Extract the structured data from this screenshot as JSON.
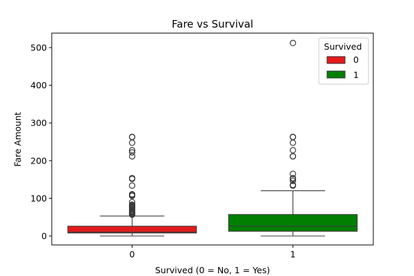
{
  "chart_data": {
    "type": "boxplot",
    "title": "Fare vs Survival",
    "xlabel": "Survived (0 = No, 1 = Yes)",
    "ylabel": "Fare Amount",
    "categories": [
      "0",
      "1"
    ],
    "ylim": [
      -25,
      538
    ],
    "yticks": [
      0,
      100,
      200,
      300,
      400,
      500
    ],
    "grid": false,
    "legend": {
      "title": "Survived",
      "placement": "top-right",
      "entries": [
        {
          "label": "0",
          "color": "#e31a1c"
        },
        {
          "label": "1",
          "color": "#007f00"
        }
      ]
    },
    "boxes": [
      {
        "category": "0",
        "color": "#e31a1c",
        "whisker_low": 0,
        "q1": 7.9,
        "median": 10.5,
        "q3": 26,
        "whisker_high": 53,
        "outliers": [
          56.5,
          57,
          59.4,
          61.2,
          61.4,
          63.4,
          65,
          66.6,
          69.5,
          71,
          73.5,
          75.2,
          76.3,
          77.3,
          79.2,
          80,
          82.2,
          83.2,
          90,
          106.4,
          108.9,
          110.9,
          133.7,
          151.6,
          153.5,
          211.5,
          221.8,
          227.5,
          247.5,
          262.4,
          263
        ]
      },
      {
        "category": "1",
        "color": "#007f00",
        "whisker_low": 0,
        "q1": 12.5,
        "median": 26,
        "q3": 57,
        "whisker_high": 120,
        "outliers": [
          133.7,
          134.5,
          135.6,
          146.5,
          151.6,
          153.5,
          164.9,
          211.3,
          211.5,
          227.5,
          247.5,
          262.4,
          263,
          512.3
        ]
      }
    ]
  }
}
